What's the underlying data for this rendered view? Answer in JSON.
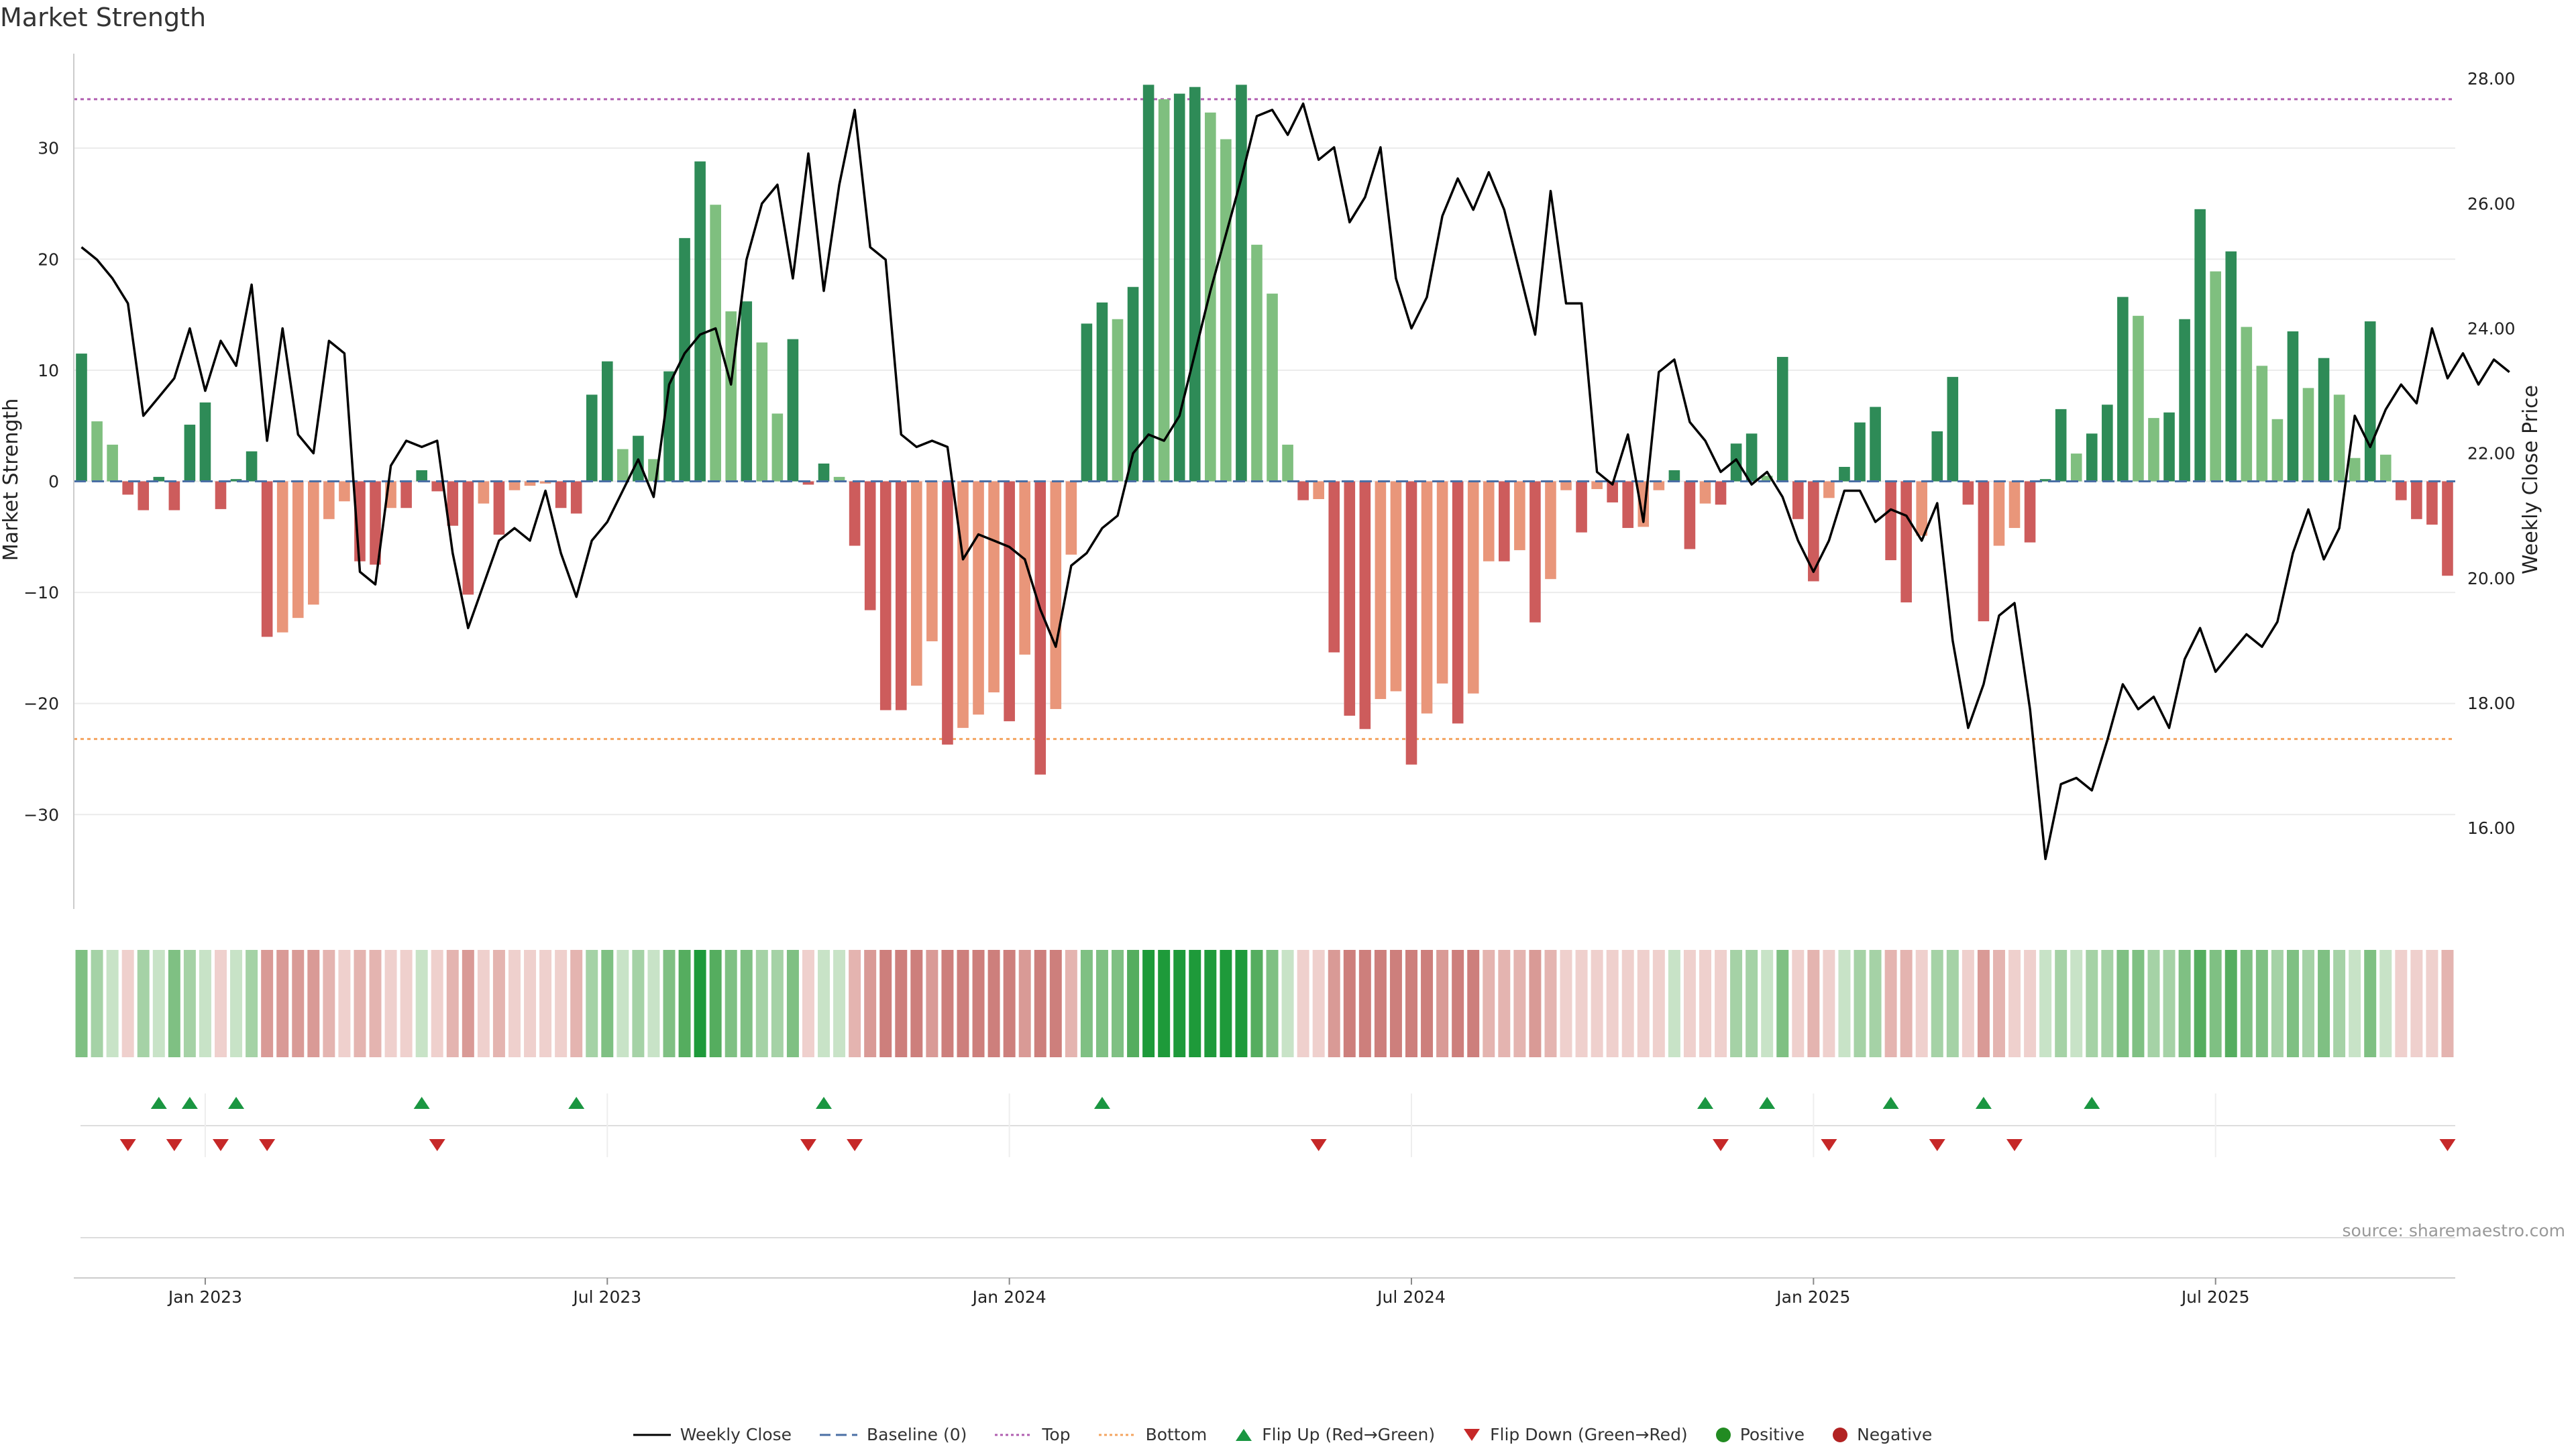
{
  "title": "Market Strength",
  "source": "source: sharemaestro.com",
  "colors": {
    "strong_green": "#2e8b57",
    "light_green": "#7fbf7f",
    "strong_red": "#cd5c5c",
    "light_red": "#e9967a",
    "top_line": "#b05fb0",
    "bottom_line": "#f4a460",
    "baseline": "#4a6fa5",
    "price_line": "#000000",
    "flip_up": "#1a9641",
    "flip_down": "#c62828"
  },
  "legend": {
    "weekly_close": "Weekly Close",
    "baseline": "Baseline (0)",
    "top": "Top",
    "bottom": "Bottom",
    "flip_up": "Flip Up (Red→Green)",
    "flip_down": "Flip Down (Green→Red)",
    "positive": "Positive",
    "negative": "Negative"
  },
  "chart_data": {
    "type": "bar",
    "title": "Market Strength",
    "ylabel": "Market Strength",
    "y2label": "Weekly Close Price",
    "ylim": [
      -38.5,
      38.5
    ],
    "y2lim": [
      14.7,
      28.4
    ],
    "yticks": [
      30,
      20,
      10,
      0,
      -10,
      -20,
      -30
    ],
    "ytick_labels": [
      "30",
      "20",
      "10",
      "0",
      "−10",
      "−20",
      "−30"
    ],
    "y2ticks": [
      28,
      26,
      24,
      22,
      20,
      18,
      16
    ],
    "y2tick_labels": [
      "28.00",
      "26.00",
      "24.00",
      "22.00",
      "20.00",
      "18.00",
      "16.00"
    ],
    "xtick_labels": [
      "Jan 2023",
      "Jul 2023",
      "Jan 2024",
      "Jul 2024",
      "Jan 2025",
      "Jul 2025"
    ],
    "xtick_weeks": [
      8.5,
      34.5,
      60.5,
      86.5,
      112.5,
      138.5
    ],
    "top_level": 34.4,
    "bottom_level": -23.2,
    "strength": [
      11.5,
      5.4,
      3.3,
      -1.2,
      -2.6,
      0.4,
      -2.6,
      5.1,
      7.1,
      -2.5,
      0.2,
      2.7,
      -14.0,
      -13.6,
      -12.3,
      -11.1,
      -3.4,
      -1.8,
      -7.2,
      -7.5,
      -2.4,
      -2.4,
      1.0,
      -0.9,
      -4.0,
      -10.2,
      -2.0,
      -4.8,
      -0.8,
      -0.4,
      -0.2,
      -2.4,
      -2.9,
      7.8,
      10.8,
      2.9,
      4.1,
      2.0,
      9.9,
      21.9,
      28.8,
      24.9,
      15.3,
      16.2,
      12.5,
      6.1,
      12.8,
      -0.3,
      1.6,
      0.4,
      -5.8,
      -11.6,
      -20.6,
      -20.6,
      -18.4,
      -14.4,
      -23.7,
      -22.2,
      -21.0,
      -19.0,
      -21.6,
      -15.6,
      -26.4,
      -20.5,
      -6.6,
      14.2,
      16.1,
      14.6,
      17.5,
      35.7,
      34.4,
      34.9,
      35.5,
      33.2,
      30.8,
      35.7,
      21.3,
      16.9,
      3.3,
      -1.7,
      -1.6,
      -15.4,
      -21.1,
      -22.3,
      -19.6,
      -18.9,
      -25.5,
      -20.9,
      -18.2,
      -21.8,
      -19.1,
      -7.2,
      -7.2,
      -6.2,
      -12.7,
      -8.8,
      -0.8,
      -4.6,
      -0.7,
      -1.9,
      -4.2,
      -4.1,
      -0.8,
      1.0,
      -6.1,
      -2.0,
      -2.1,
      3.4,
      4.3,
      0.5,
      11.2,
      -3.4,
      -9.0,
      -1.5,
      1.3,
      5.3,
      6.7,
      -7.1,
      -10.9,
      -4.9,
      4.5,
      9.4,
      -2.1,
      -12.6,
      -5.8,
      -4.2,
      -5.5,
      0.2,
      6.5,
      2.5,
      4.3,
      6.9,
      16.6,
      14.9,
      5.7,
      6.2,
      14.6,
      24.5,
      18.9,
      20.7,
      13.9,
      10.4,
      5.6,
      13.5,
      8.4,
      11.1,
      7.8,
      2.1,
      14.4,
      2.4,
      -1.7,
      -3.4,
      -3.9,
      -8.5
    ],
    "weekly_close": [
      25.3,
      25.1,
      24.8,
      24.4,
      22.6,
      22.9,
      23.2,
      24.0,
      23.0,
      23.8,
      23.4,
      24.7,
      22.2,
      24.0,
      22.3,
      22.0,
      23.8,
      23.6,
      20.1,
      19.9,
      21.8,
      22.2,
      22.1,
      22.2,
      20.4,
      19.2,
      19.9,
      20.6,
      20.8,
      20.6,
      21.4,
      20.4,
      19.7,
      20.6,
      20.9,
      21.4,
      21.9,
      21.3,
      23.1,
      23.6,
      23.9,
      24.0,
      23.1,
      25.1,
      26.0,
      26.3,
      24.8,
      26.8,
      24.6,
      26.3,
      27.5,
      25.3,
      25.1,
      22.3,
      22.1,
      22.2,
      22.1,
      20.3,
      20.7,
      20.6,
      20.5,
      20.3,
      19.5,
      18.9,
      20.2,
      20.4,
      20.8,
      21.0,
      22.0,
      22.3,
      22.2,
      22.6,
      23.6,
      24.6,
      25.5,
      26.4,
      27.4,
      27.5,
      27.1,
      27.6,
      26.7,
      26.9,
      25.7,
      26.1,
      26.9,
      24.8,
      24.0,
      24.5,
      25.8,
      26.4,
      25.9,
      26.5,
      25.9,
      24.9,
      23.9,
      26.2,
      24.4,
      24.4,
      21.7,
      21.5,
      22.3,
      20.9,
      23.3,
      23.5,
      22.5,
      22.2,
      21.7,
      21.9,
      21.5,
      21.7,
      21.3,
      20.6,
      20.1,
      20.6,
      21.4,
      21.4,
      20.9,
      21.1,
      21.0,
      20.6,
      21.2,
      19.0,
      17.6,
      18.3,
      19.4,
      19.6,
      17.9,
      15.5,
      16.7,
      16.8,
      16.6,
      17.4,
      18.3,
      17.9,
      18.1,
      17.6,
      18.7,
      19.2,
      18.5,
      18.8,
      19.1,
      18.9,
      19.3,
      20.4,
      21.1,
      20.3,
      20.8,
      22.6,
      22.1,
      22.7,
      23.1,
      22.8,
      24.0,
      23.2,
      23.6,
      23.1,
      23.5,
      23.3
    ],
    "heat_strength": [
      3,
      2,
      1,
      -1,
      2,
      1,
      3,
      2,
      1,
      -1,
      1,
      2,
      -3,
      -3,
      -3,
      -3,
      -2,
      -1,
      -2,
      -2,
      -1,
      -1,
      1,
      -1,
      -2,
      -3,
      -1,
      -2,
      -1,
      -1,
      -1,
      -1,
      -2,
      2,
      3,
      1,
      2,
      1,
      3,
      4,
      5,
      4,
      3,
      3,
      2,
      2,
      3,
      -1,
      1,
      1,
      -2,
      -3,
      -4,
      -4,
      -4,
      -3,
      -4,
      -4,
      -4,
      -4,
      -4,
      -3,
      -4,
      -4,
      -2,
      3,
      3,
      3,
      4,
      5,
      5,
      5,
      5,
      5,
      5,
      5,
      4,
      3,
      1,
      -1,
      -1,
      -3,
      -4,
      -4,
      -4,
      -4,
      -4,
      -4,
      -3,
      -4,
      -4,
      -2,
      -2,
      -2,
      -3,
      -2,
      -1,
      -1,
      -1,
      -1,
      -1,
      -1,
      -1,
      1,
      -1,
      -1,
      -1,
      2,
      2,
      1,
      3,
      -1,
      -2,
      -1,
      1,
      2,
      2,
      -2,
      -2,
      -1,
      2,
      2,
      -1,
      -3,
      -2,
      -1,
      -1,
      1,
      2,
      1,
      2,
      2,
      3,
      3,
      2,
      2,
      3,
      4,
      3,
      4,
      3,
      3,
      2,
      3,
      2,
      3,
      2,
      1,
      3,
      1,
      -1,
      -1,
      -1,
      -2
    ],
    "flip_up_weeks": [
      5,
      7,
      10,
      22,
      32,
      48,
      66,
      105,
      109,
      117,
      123,
      130
    ],
    "flip_down_weeks": [
      3,
      6,
      9,
      12,
      23,
      47,
      50,
      80,
      106,
      113,
      120,
      125,
      153
    ]
  }
}
